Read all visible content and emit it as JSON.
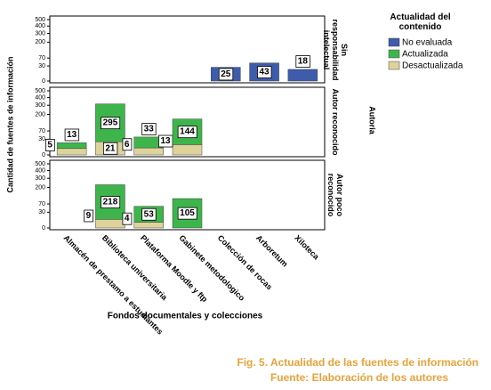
{
  "chart_data": {
    "type": "bar",
    "stacked": true,
    "scale": "sqrt",
    "y_label": "Cantidad de fuentes de información",
    "x_label": "Fondos documentales y colecciones",
    "facet_label": "Autoria",
    "legend_title": "Actualidad del contenido",
    "categories": [
      "Almacén de prestamo a estudiantes",
      "Biblioteca universitaria",
      "Plataforma Moodle y ftp",
      "Gabinete metodologico",
      "Colección de rocas",
      "Arboretum",
      "Xiloteca"
    ],
    "series": [
      {
        "name": "No evaluada",
        "color": "#3f5bab"
      },
      {
        "name": "Actualizada",
        "color": "#3db54a"
      },
      {
        "name": "Desactualizada",
        "color": "#ddd39b"
      }
    ],
    "panels": [
      {
        "label": "Sin responsabilidad intelectual",
        "values": [
          [
            null,
            null,
            null,
            null,
            25,
            43,
            18
          ],
          [
            null,
            null,
            null,
            null,
            null,
            null,
            null
          ],
          [
            null,
            null,
            null,
            null,
            null,
            null,
            null
          ]
        ]
      },
      {
        "label": "Autor reconocido",
        "values": [
          [
            null,
            null,
            null,
            null,
            null,
            null,
            null
          ],
          [
            13,
            295,
            33,
            144,
            null,
            null,
            null
          ],
          [
            5,
            21,
            6,
            13,
            null,
            null,
            null
          ]
        ]
      },
      {
        "label": "Autor poco reconocido",
        "values": [
          [
            null,
            null,
            null,
            null,
            null,
            null,
            null
          ],
          [
            null,
            218,
            53,
            105,
            null,
            null,
            null
          ],
          [
            null,
            9,
            4,
            null,
            null,
            null,
            null
          ]
        ]
      }
    ],
    "ylim": [
      0,
      500
    ],
    "yticks": [
      0,
      30,
      70,
      200,
      300,
      400,
      500
    ]
  },
  "caption": [
    "Fig. 5. Actualidad de las fuentes de información",
    "Fuente: Elaboración de los autores"
  ]
}
